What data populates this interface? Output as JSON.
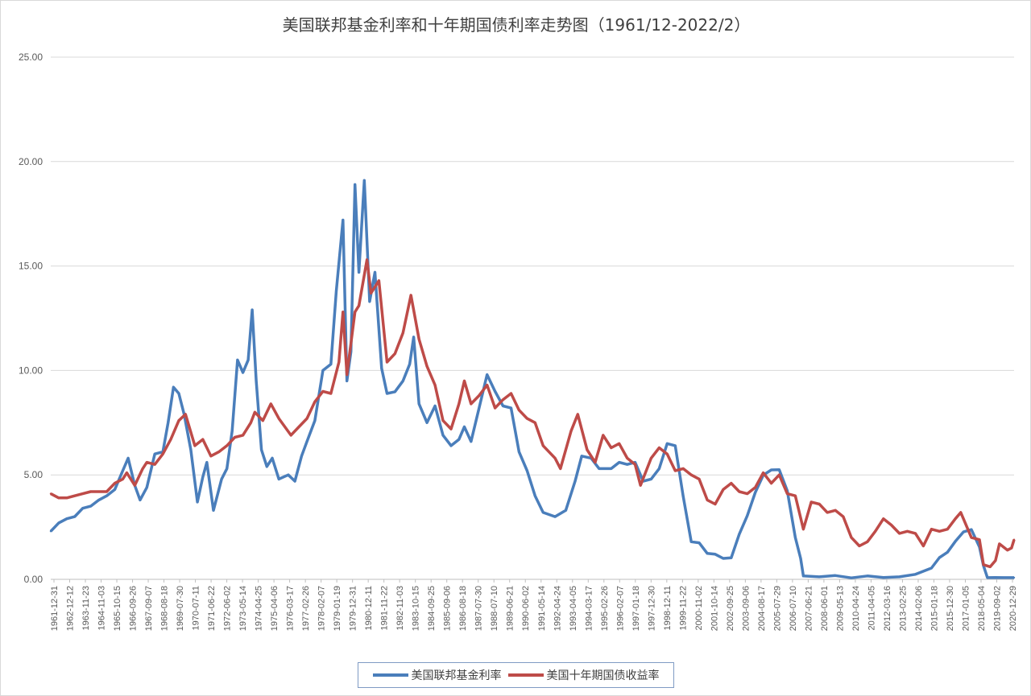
{
  "chart_data": {
    "type": "line",
    "title": "美国联邦基金利率和十年期国债利率走势图（1961/12-2022/2）",
    "ylim": [
      0,
      25
    ],
    "y_ticks": [
      "0.00",
      "5.00",
      "10.00",
      "15.00",
      "20.00",
      "25.00"
    ],
    "grid": "horizontal",
    "legend_position": "bottom",
    "x_range": [
      "1961-12-31",
      "2022-02-28"
    ],
    "x_tick_labels": [
      "1961-12-31",
      "1962-12-12",
      "1963-11-23",
      "1964-11-03",
      "1965-10-15",
      "1966-09-26",
      "1967-09-07",
      "1968-08-18",
      "1969-07-30",
      "1970-07-11",
      "1971-06-22",
      "1972-06-02",
      "1973-05-14",
      "1974-04-25",
      "1975-04-06",
      "1976-03-17",
      "1977-02-26",
      "1978-02-07",
      "1979-01-19",
      "1979-12-31",
      "1980-12-11",
      "1981-11-22",
      "1982-11-03",
      "1983-10-15",
      "1984-09-25",
      "1985-09-06",
      "1986-08-18",
      "1987-07-30",
      "1988-07-10",
      "1989-06-21",
      "1990-06-02",
      "1991-05-14",
      "1992-04-24",
      "1993-04-05",
      "1994-03-17",
      "1995-02-26",
      "1996-02-07",
      "1997-01-18",
      "1997-12-30",
      "1998-12-11",
      "1999-11-22",
      "2000-11-02",
      "2001-10-14",
      "2002-09-25",
      "2003-09-06",
      "2004-08-17",
      "2005-07-29",
      "2006-07-10",
      "2007-06-21",
      "2008-06-01",
      "2009-05-13",
      "2010-04-24",
      "2011-04-05",
      "2012-03-16",
      "2013-02-25",
      "2014-02-06",
      "2015-01-18",
      "2015-12-30",
      "2017-01-05",
      "2018-05-04",
      "2019-09-02",
      "2020-12-29"
    ],
    "series": [
      {
        "name": "美国联邦基金利率",
        "color": "#4a7ebb",
        "points": [
          [
            "1961-12-31",
            2.3
          ],
          [
            "1962-06-30",
            2.7
          ],
          [
            "1962-12-31",
            2.9
          ],
          [
            "1963-06-30",
            3.0
          ],
          [
            "1963-12-31",
            3.4
          ],
          [
            "1964-06-30",
            3.5
          ],
          [
            "1964-12-31",
            3.8
          ],
          [
            "1965-06-30",
            4.0
          ],
          [
            "1965-12-31",
            4.3
          ],
          [
            "1966-06-30",
            5.2
          ],
          [
            "1966-10-31",
            5.8
          ],
          [
            "1967-03-31",
            4.5
          ],
          [
            "1967-07-31",
            3.8
          ],
          [
            "1967-12-31",
            4.4
          ],
          [
            "1968-06-30",
            6.0
          ],
          [
            "1968-12-31",
            6.1
          ],
          [
            "1969-04-30",
            7.5
          ],
          [
            "1969-08-31",
            9.2
          ],
          [
            "1969-12-31",
            8.9
          ],
          [
            "1970-04-30",
            7.9
          ],
          [
            "1970-09-30",
            6.2
          ],
          [
            "1971-02-28",
            3.7
          ],
          [
            "1971-06-30",
            4.9
          ],
          [
            "1971-09-30",
            5.6
          ],
          [
            "1972-02-28",
            3.3
          ],
          [
            "1972-08-31",
            4.8
          ],
          [
            "1972-12-31",
            5.3
          ],
          [
            "1973-04-30",
            7.1
          ],
          [
            "1973-08-31",
            10.5
          ],
          [
            "1973-12-31",
            9.9
          ],
          [
            "1974-04-30",
            10.5
          ],
          [
            "1974-07-31",
            12.9
          ],
          [
            "1974-10-31",
            9.5
          ],
          [
            "1975-02-28",
            6.2
          ],
          [
            "1975-06-30",
            5.4
          ],
          [
            "1975-10-31",
            5.8
          ],
          [
            "1976-03-31",
            4.8
          ],
          [
            "1976-10-31",
            5.0
          ],
          [
            "1977-03-31",
            4.7
          ],
          [
            "1977-08-31",
            5.9
          ],
          [
            "1977-12-31",
            6.6
          ],
          [
            "1978-06-30",
            7.6
          ],
          [
            "1978-12-31",
            10.0
          ],
          [
            "1979-06-30",
            10.3
          ],
          [
            "1979-10-31",
            13.8
          ],
          [
            "1980-03-31",
            17.2
          ],
          [
            "1980-06-30",
            9.5
          ],
          [
            "1980-09-30",
            10.9
          ],
          [
            "1980-12-31",
            18.9
          ],
          [
            "1981-03-31",
            14.7
          ],
          [
            "1981-07-31",
            19.1
          ],
          [
            "1981-11-30",
            13.3
          ],
          [
            "1982-03-31",
            14.7
          ],
          [
            "1982-08-31",
            10.1
          ],
          [
            "1982-12-31",
            8.9
          ],
          [
            "1983-06-30",
            8.98
          ],
          [
            "1983-12-31",
            9.5
          ],
          [
            "1984-05-31",
            10.3
          ],
          [
            "1984-08-31",
            11.6
          ],
          [
            "1984-12-31",
            8.4
          ],
          [
            "1985-06-30",
            7.5
          ],
          [
            "1985-12-31",
            8.3
          ],
          [
            "1986-06-30",
            6.9
          ],
          [
            "1986-12-31",
            6.4
          ],
          [
            "1987-06-30",
            6.7
          ],
          [
            "1987-10-31",
            7.3
          ],
          [
            "1988-03-31",
            6.6
          ],
          [
            "1988-09-30",
            8.2
          ],
          [
            "1989-03-31",
            9.8
          ],
          [
            "1989-09-30",
            9.0
          ],
          [
            "1990-03-31",
            8.3
          ],
          [
            "1990-09-30",
            8.2
          ],
          [
            "1991-03-31",
            6.1
          ],
          [
            "1991-09-30",
            5.2
          ],
          [
            "1992-03-31",
            4.0
          ],
          [
            "1992-09-30",
            3.2
          ],
          [
            "1993-06-30",
            3.0
          ],
          [
            "1994-02-28",
            3.3
          ],
          [
            "1994-09-30",
            4.7
          ],
          [
            "1995-02-28",
            5.9
          ],
          [
            "1995-09-30",
            5.8
          ],
          [
            "1996-03-31",
            5.3
          ],
          [
            "1996-12-31",
            5.3
          ],
          [
            "1997-06-30",
            5.6
          ],
          [
            "1997-12-31",
            5.5
          ],
          [
            "1998-06-30",
            5.6
          ],
          [
            "1998-12-31",
            4.7
          ],
          [
            "1999-06-30",
            4.8
          ],
          [
            "1999-12-31",
            5.3
          ],
          [
            "2000-06-30",
            6.5
          ],
          [
            "2000-12-31",
            6.4
          ],
          [
            "2001-06-30",
            3.97
          ],
          [
            "2001-12-31",
            1.8
          ],
          [
            "2002-06-30",
            1.75
          ],
          [
            "2002-12-31",
            1.24
          ],
          [
            "2003-06-30",
            1.2
          ],
          [
            "2003-12-31",
            1.0
          ],
          [
            "2004-06-30",
            1.03
          ],
          [
            "2004-12-31",
            2.16
          ],
          [
            "2005-06-30",
            3.04
          ],
          [
            "2005-12-31",
            4.16
          ],
          [
            "2006-06-30",
            4.99
          ],
          [
            "2006-12-31",
            5.24
          ],
          [
            "2007-06-30",
            5.25
          ],
          [
            "2007-12-31",
            4.24
          ],
          [
            "2008-06-30",
            2.0
          ],
          [
            "2008-10-31",
            1.0
          ],
          [
            "2008-12-31",
            0.16
          ],
          [
            "2009-12-31",
            0.12
          ],
          [
            "2010-12-31",
            0.18
          ],
          [
            "2011-12-31",
            0.07
          ],
          [
            "2012-12-31",
            0.16
          ],
          [
            "2013-12-31",
            0.09
          ],
          [
            "2014-12-31",
            0.12
          ],
          [
            "2015-12-31",
            0.24
          ],
          [
            "2016-12-31",
            0.54
          ],
          [
            "2017-06-30",
            1.04
          ],
          [
            "2017-12-31",
            1.3
          ],
          [
            "2018-06-30",
            1.82
          ],
          [
            "2018-12-31",
            2.27
          ],
          [
            "2019-06-30",
            2.38
          ],
          [
            "2019-12-31",
            1.55
          ],
          [
            "2020-03-31",
            0.65
          ],
          [
            "2020-06-30",
            0.08
          ],
          [
            "2020-12-31",
            0.09
          ],
          [
            "2021-06-30",
            0.08
          ],
          [
            "2021-12-31",
            0.08
          ],
          [
            "2022-02-28",
            0.08
          ]
        ]
      },
      {
        "name": "美国十年期国债收益率",
        "color": "#be4b48",
        "points": [
          [
            "1961-12-31",
            4.1
          ],
          [
            "1962-06-30",
            3.9
          ],
          [
            "1962-12-31",
            3.9
          ],
          [
            "1963-06-30",
            4.0
          ],
          [
            "1963-12-31",
            4.1
          ],
          [
            "1964-06-30",
            4.2
          ],
          [
            "1964-12-31",
            4.2
          ],
          [
            "1965-06-30",
            4.2
          ],
          [
            "1965-12-31",
            4.6
          ],
          [
            "1966-06-30",
            4.8
          ],
          [
            "1966-09-30",
            5.1
          ],
          [
            "1967-03-31",
            4.5
          ],
          [
            "1967-09-30",
            5.3
          ],
          [
            "1967-12-31",
            5.6
          ],
          [
            "1968-06-30",
            5.5
          ],
          [
            "1968-12-31",
            6.0
          ],
          [
            "1969-06-30",
            6.7
          ],
          [
            "1969-12-31",
            7.6
          ],
          [
            "1970-05-31",
            7.9
          ],
          [
            "1970-12-31",
            6.4
          ],
          [
            "1971-06-30",
            6.7
          ],
          [
            "1971-12-31",
            5.9
          ],
          [
            "1972-06-30",
            6.1
          ],
          [
            "1972-12-31",
            6.4
          ],
          [
            "1973-06-30",
            6.8
          ],
          [
            "1973-12-31",
            6.9
          ],
          [
            "1974-06-30",
            7.5
          ],
          [
            "1974-09-30",
            8.0
          ],
          [
            "1975-03-31",
            7.6
          ],
          [
            "1975-09-30",
            8.4
          ],
          [
            "1976-03-31",
            7.7
          ],
          [
            "1976-12-31",
            6.9
          ],
          [
            "1977-06-30",
            7.3
          ],
          [
            "1977-12-31",
            7.7
          ],
          [
            "1978-06-30",
            8.5
          ],
          [
            "1978-12-31",
            9.0
          ],
          [
            "1979-06-30",
            8.9
          ],
          [
            "1979-12-31",
            10.4
          ],
          [
            "1980-03-31",
            12.8
          ],
          [
            "1980-06-30",
            9.8
          ],
          [
            "1980-12-31",
            12.8
          ],
          [
            "1981-03-31",
            13.1
          ],
          [
            "1981-09-30",
            15.3
          ],
          [
            "1981-12-31",
            13.7
          ],
          [
            "1982-06-30",
            14.3
          ],
          [
            "1982-12-31",
            10.4
          ],
          [
            "1983-06-30",
            10.8
          ],
          [
            "1983-12-31",
            11.8
          ],
          [
            "1984-06-30",
            13.6
          ],
          [
            "1984-12-31",
            11.5
          ],
          [
            "1985-06-30",
            10.2
          ],
          [
            "1985-12-31",
            9.3
          ],
          [
            "1986-06-30",
            7.6
          ],
          [
            "1986-12-31",
            7.2
          ],
          [
            "1987-06-30",
            8.4
          ],
          [
            "1987-10-31",
            9.5
          ],
          [
            "1988-03-31",
            8.4
          ],
          [
            "1988-09-30",
            8.8
          ],
          [
            "1989-03-31",
            9.3
          ],
          [
            "1989-09-30",
            8.2
          ],
          [
            "1990-03-31",
            8.6
          ],
          [
            "1990-09-30",
            8.9
          ],
          [
            "1991-03-31",
            8.1
          ],
          [
            "1991-09-30",
            7.7
          ],
          [
            "1992-03-31",
            7.5
          ],
          [
            "1992-09-30",
            6.4
          ],
          [
            "1993-06-30",
            5.8
          ],
          [
            "1993-10-31",
            5.3
          ],
          [
            "1994-06-30",
            7.1
          ],
          [
            "1994-11-30",
            7.9
          ],
          [
            "1995-06-30",
            6.2
          ],
          [
            "1995-12-31",
            5.6
          ],
          [
            "1996-06-30",
            6.9
          ],
          [
            "1996-12-31",
            6.3
          ],
          [
            "1997-06-30",
            6.5
          ],
          [
            "1997-12-31",
            5.8
          ],
          [
            "1998-06-30",
            5.5
          ],
          [
            "1998-10-31",
            4.5
          ],
          [
            "1999-06-30",
            5.8
          ],
          [
            "1999-12-31",
            6.3
          ],
          [
            "2000-06-30",
            6.0
          ],
          [
            "2000-12-31",
            5.2
          ],
          [
            "2001-06-30",
            5.3
          ],
          [
            "2001-12-31",
            5.0
          ],
          [
            "2002-06-30",
            4.8
          ],
          [
            "2002-12-31",
            3.8
          ],
          [
            "2003-06-30",
            3.6
          ],
          [
            "2003-12-31",
            4.3
          ],
          [
            "2004-06-30",
            4.6
          ],
          [
            "2004-12-31",
            4.2
          ],
          [
            "2005-06-30",
            4.1
          ],
          [
            "2005-12-31",
            4.4
          ],
          [
            "2006-06-30",
            5.1
          ],
          [
            "2006-12-31",
            4.6
          ],
          [
            "2007-06-30",
            5.0
          ],
          [
            "2007-12-31",
            4.1
          ],
          [
            "2008-06-30",
            4.0
          ],
          [
            "2008-12-31",
            2.4
          ],
          [
            "2009-06-30",
            3.7
          ],
          [
            "2009-12-31",
            3.6
          ],
          [
            "2010-06-30",
            3.2
          ],
          [
            "2010-12-31",
            3.3
          ],
          [
            "2011-06-30",
            3.0
          ],
          [
            "2011-12-31",
            2.0
          ],
          [
            "2012-06-30",
            1.6
          ],
          [
            "2012-12-31",
            1.8
          ],
          [
            "2013-06-30",
            2.3
          ],
          [
            "2013-12-31",
            2.9
          ],
          [
            "2014-06-30",
            2.6
          ],
          [
            "2014-12-31",
            2.2
          ],
          [
            "2015-06-30",
            2.3
          ],
          [
            "2015-12-31",
            2.2
          ],
          [
            "2016-06-30",
            1.6
          ],
          [
            "2016-12-31",
            2.4
          ],
          [
            "2017-06-30",
            2.3
          ],
          [
            "2017-12-31",
            2.4
          ],
          [
            "2018-06-30",
            2.9
          ],
          [
            "2018-10-31",
            3.2
          ],
          [
            "2019-06-30",
            2.0
          ],
          [
            "2019-12-31",
            1.9
          ],
          [
            "2020-03-31",
            0.7
          ],
          [
            "2020-08-31",
            0.6
          ],
          [
            "2020-12-31",
            0.9
          ],
          [
            "2021-03-31",
            1.7
          ],
          [
            "2021-09-30",
            1.4
          ],
          [
            "2021-12-31",
            1.5
          ],
          [
            "2022-02-28",
            1.9
          ]
        ]
      }
    ]
  }
}
